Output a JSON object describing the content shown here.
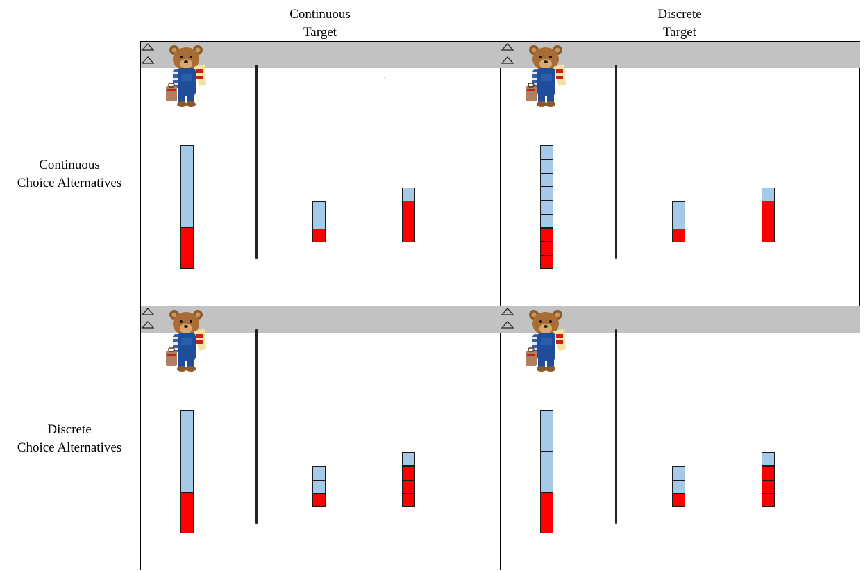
{
  "column_headers": [
    [
      "Continuous",
      "Target"
    ],
    [
      "Discrete",
      "Target"
    ]
  ],
  "row_headers": [
    [
      "Continuous",
      "Choice Alternatives"
    ],
    [
      "Discrete",
      "Choice Alternatives"
    ]
  ],
  "colors": {
    "filled": "#ff0000",
    "empty": "#a5c9e8",
    "button": "#c2c2c2",
    "outline": "#1a1a1a"
  },
  "icons": {
    "character": "teddy-bear-icon",
    "choice_button": "up-triangle-icon"
  },
  "panels": [
    {
      "target_type": "Continuous",
      "choice_type": "Continuous",
      "target": {
        "red_fraction": 0.33,
        "segments": 1
      },
      "choices": [
        {
          "red_fraction": 0.33,
          "segments": 1
        },
        {
          "red_fraction": 0.75,
          "segments": 1
        }
      ]
    },
    {
      "target_type": "Discrete",
      "choice_type": "Continuous",
      "target": {
        "red_fraction": 0.33,
        "segments": 9
      },
      "choices": [
        {
          "red_fraction": 0.33,
          "segments": 1
        },
        {
          "red_fraction": 0.75,
          "segments": 1
        }
      ]
    },
    {
      "target_type": "Continuous",
      "choice_type": "Discrete",
      "target": {
        "red_fraction": 0.33,
        "segments": 1
      },
      "choices": [
        {
          "red_fraction": 0.33,
          "segments": 3
        },
        {
          "red_fraction": 0.75,
          "segments": 4
        }
      ]
    },
    {
      "target_type": "Discrete",
      "choice_type": "Discrete",
      "target": {
        "red_fraction": 0.33,
        "segments": 9
      },
      "choices": [
        {
          "red_fraction": 0.33,
          "segments": 3
        },
        {
          "red_fraction": 0.75,
          "segments": 4
        }
      ]
    }
  ]
}
